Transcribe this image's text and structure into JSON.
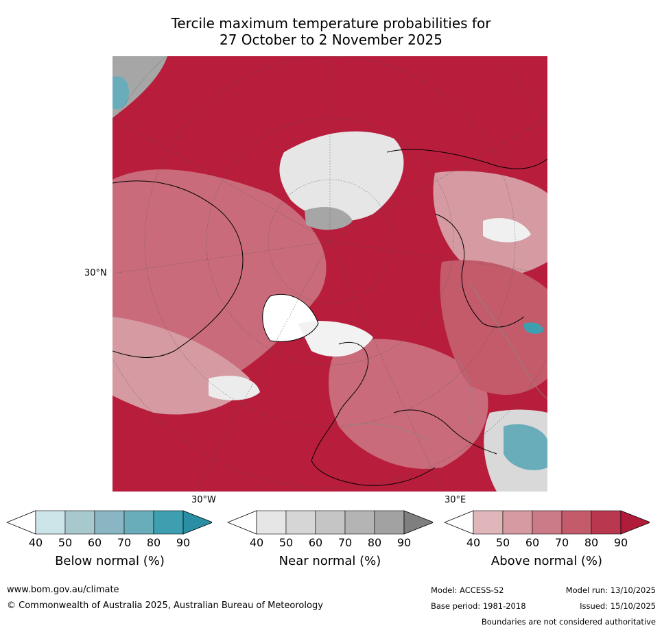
{
  "title_line1": "Tercile maximum temperature probabilities for",
  "title_line2": "27 October to 2 November 2025",
  "map": {
    "labels": {
      "lat": "30°N",
      "lon_left": "30°W",
      "lon_right": "30°E"
    },
    "colors": {
      "ocean_warm": "#b81d3c",
      "white": "#ffffff",
      "grey": "#a6a6a6",
      "blue": "#55a8b8"
    }
  },
  "colorbars": [
    {
      "id": "below",
      "label": "Below normal (%)",
      "ticks": [
        "40",
        "50",
        "60",
        "70",
        "80",
        "90"
      ],
      "colors": [
        "#cde4e8",
        "#a7c9ce",
        "#8ab6c3",
        "#6aadba",
        "#3e9fb0",
        "#2a8ea5"
      ]
    },
    {
      "id": "near",
      "label": "Near normal (%)",
      "ticks": [
        "40",
        "50",
        "60",
        "70",
        "80",
        "90"
      ],
      "colors": [
        "#e6e6e6",
        "#d6d6d6",
        "#c5c5c5",
        "#b4b4b4",
        "#a2a2a2",
        "#7f7f7f"
      ]
    },
    {
      "id": "above",
      "label": "Above normal (%)",
      "ticks": [
        "40",
        "50",
        "60",
        "70",
        "80",
        "90"
      ],
      "colors": [
        "#e0b6bb",
        "#d59aa2",
        "#ca7b87",
        "#c35b6b",
        "#b9384f",
        "#b11c3a"
      ]
    }
  ],
  "footer": {
    "website": "www.bom.gov.au/climate",
    "copyright": "© Commonwealth of Australia 2025, Australian Bureau of Meteorology",
    "model": "Model: ACCESS-S2",
    "model_run": "Model run: 13/10/2025",
    "base_period": "Base period: 1981-2018",
    "issued": "Issued: 15/10/2025",
    "disclaimer": "Boundaries are not considered authoritative"
  }
}
